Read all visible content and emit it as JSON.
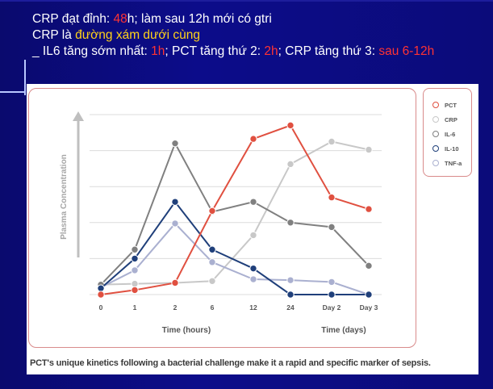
{
  "header": {
    "line1": {
      "a": "CRP đạt đỉnh: ",
      "b": "48",
      "c": "h;  làm sau 12h mới có gtri"
    },
    "line2": {
      "a": "CRP là ",
      "b": "đường xám dưới cùng"
    },
    "line3": {
      "a": "_ IL6 tăng sớm nhất: ",
      "b": "1h",
      "c": "; PCT tăng thứ 2: ",
      "d": "2h",
      "e": "; CRP tăng thứ 3: ",
      "f": "sau 6-12h"
    }
  },
  "caption": "PCT's unique kinetics following a bacterial challenge make it a rapid and specific marker of sepsis.",
  "colors": {
    "red": "#ff3333",
    "yellow": "#ffd21a"
  },
  "chart_data": {
    "type": "line",
    "ylabel": "Plasma Concentration",
    "xlabel_hours": "Time (hours)",
    "xlabel_days": "Time (days)",
    "categories": [
      "0",
      "1",
      "2",
      "6",
      "12",
      "24",
      "Day 2",
      "Day 3"
    ],
    "ylim": [
      0,
      10
    ],
    "grid": true,
    "legend_position": "right",
    "series": [
      {
        "name": "PCT",
        "color": "#e05040",
        "values": [
          0.0,
          0.25,
          0.65,
          4.65,
          8.65,
          9.4,
          5.4,
          4.75
        ]
      },
      {
        "name": "CRP",
        "color": "#c8c8c8",
        "values": [
          0.55,
          0.6,
          0.65,
          0.75,
          3.3,
          7.25,
          8.5,
          8.05
        ]
      },
      {
        "name": "IL-6",
        "color": "#808080",
        "values": [
          0.55,
          2.5,
          8.4,
          4.6,
          5.15,
          4.0,
          3.75,
          1.6
        ]
      },
      {
        "name": "IL-10",
        "color": "#1f3f7a",
        "values": [
          0.35,
          2.0,
          5.15,
          2.5,
          1.45,
          0.0,
          0.0,
          0.0
        ]
      },
      {
        "name": "TNF-a",
        "color": "#aab0d0",
        "values": [
          0.4,
          1.35,
          3.95,
          1.8,
          0.85,
          0.8,
          0.7,
          0.0
        ]
      }
    ]
  }
}
